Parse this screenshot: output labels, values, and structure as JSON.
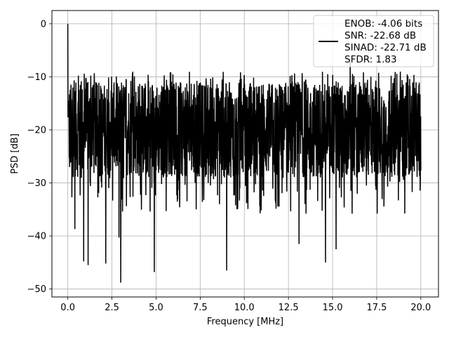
{
  "chart_data": {
    "type": "line",
    "title": "",
    "xlabel": "Frequency [MHz]",
    "ylabel": "PSD [dB]",
    "xlim": [
      -0.9,
      21.0
    ],
    "ylim": [
      -51.5,
      2.5
    ],
    "xticks": [
      0.0,
      2.5,
      5.0,
      7.5,
      10.0,
      12.5,
      15.0,
      17.5,
      20.0
    ],
    "xtick_labels": [
      "0.0",
      "2.5",
      "5.0",
      "7.5",
      "10.0",
      "12.5",
      "15.0",
      "17.5",
      "20.0"
    ],
    "yticks": [
      0,
      -10,
      -20,
      -30,
      -40,
      -50
    ],
    "ytick_labels": [
      "0",
      "−10",
      "−20",
      "−30",
      "−40",
      "−50"
    ],
    "grid": true,
    "legend_position": "top-right",
    "series": [
      {
        "name": "ENOB: -4.06 bits\nSNR: -22.68 dB\nSINAD: -22.71 dB\nSFDR: 1.83",
        "legend_lines": [
          "ENOB: -4.06 bits",
          "SNR: -22.68 dB",
          "SINAD: -22.71 dB",
          "SFDR: 1.83"
        ],
        "color": "#000000",
        "x_range": [
          0.0,
          20.0
        ],
        "approx_mean": -20,
        "approx_upper_envelope": -9,
        "notable_points": [
          {
            "x": 0.0,
            "y": 0.0
          },
          {
            "x": 0.03,
            "y": -14.5
          },
          {
            "x": 0.4,
            "y": -38.7
          },
          {
            "x": 0.9,
            "y": -44.8
          },
          {
            "x": 1.15,
            "y": -45.5
          },
          {
            "x": 2.15,
            "y": -45.2
          },
          {
            "x": 2.9,
            "y": -40.3
          },
          {
            "x": 3.0,
            "y": -48.8
          },
          {
            "x": 4.9,
            "y": -46.8
          },
          {
            "x": 9.0,
            "y": -46.5
          },
          {
            "x": 13.1,
            "y": -41.5
          },
          {
            "x": 14.6,
            "y": -45.0
          },
          {
            "x": 15.2,
            "y": -42.5
          },
          {
            "x": 16.0,
            "y": -7.2
          }
        ]
      }
    ]
  }
}
